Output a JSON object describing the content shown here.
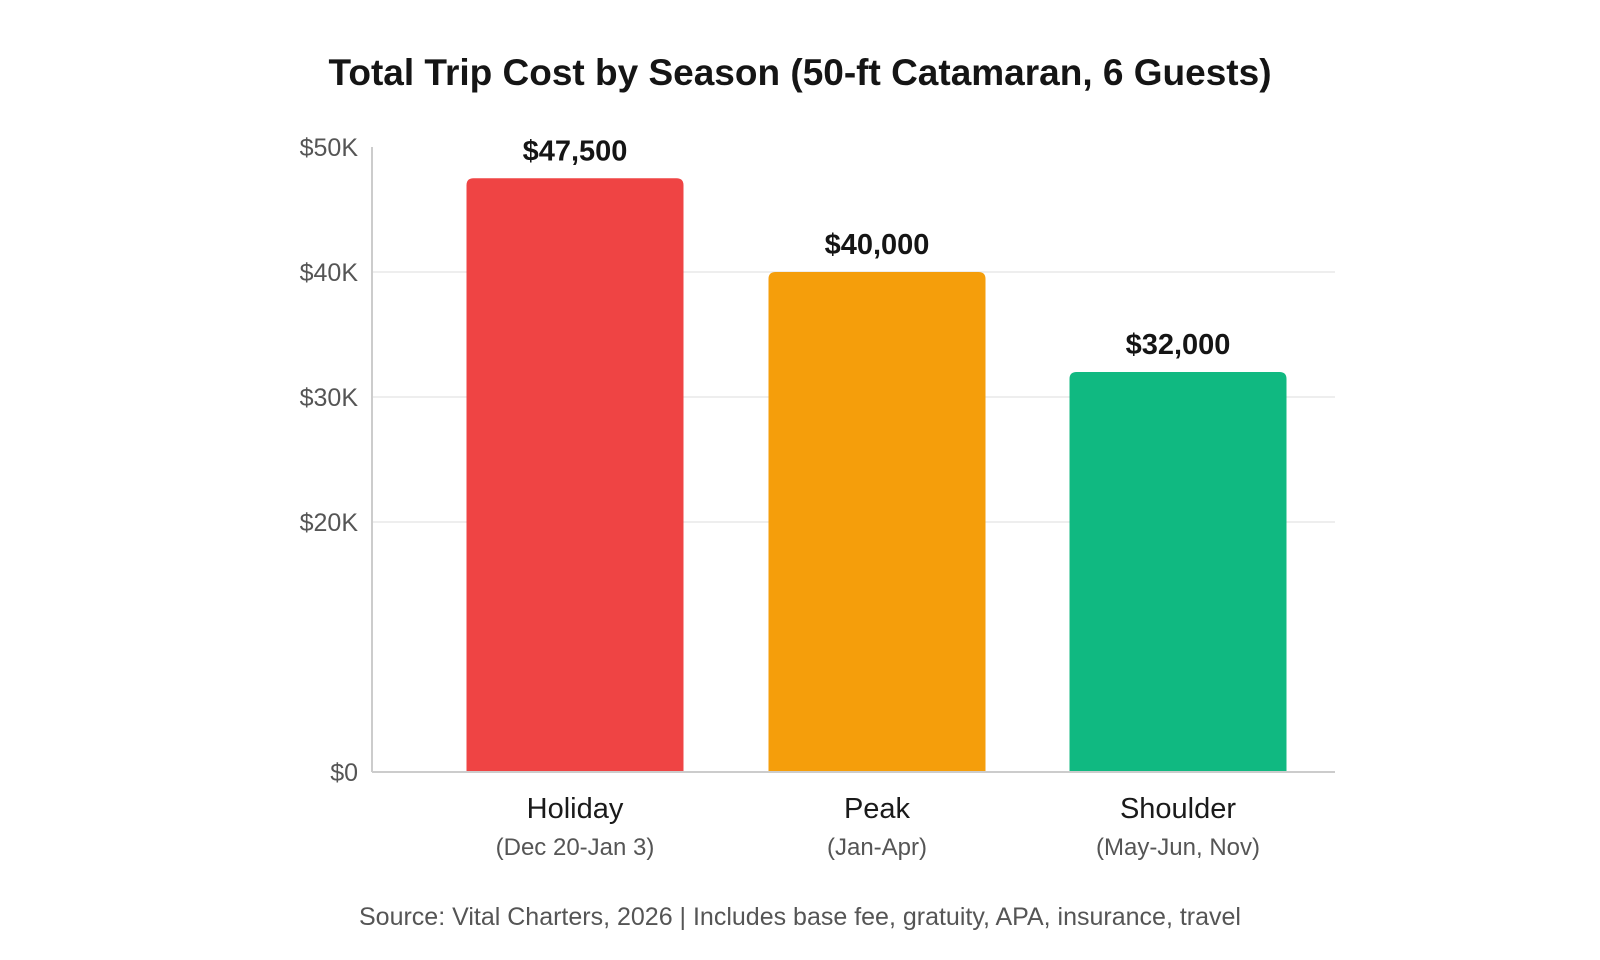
{
  "chart_data": {
    "type": "bar",
    "title": "Total Trip Cost by Season (50-ft Catamaran, 6 Guests)",
    "xlabel": "",
    "ylabel": "",
    "categories": [
      "Holiday",
      "Peak",
      "Shoulder"
    ],
    "category_sublabels": [
      "(Dec 20-Jan 3)",
      "(Jan-Apr)",
      "(May-Jun, Nov)"
    ],
    "values": [
      47500,
      40000,
      32000
    ],
    "value_labels": [
      "$47,500",
      "$40,000",
      "$32,000"
    ],
    "bar_colors": [
      "#EF4444",
      "#F59E0B",
      "#10B981"
    ],
    "ylim": [
      0,
      50000
    ],
    "y_ticks": [
      0,
      20000,
      30000,
      40000,
      50000
    ],
    "y_tick_labels": [
      "$0",
      "$20K",
      "$30K",
      "$40K",
      "$50K"
    ],
    "grid": true,
    "legend": "none"
  },
  "footer": {
    "source": "Source: Vital Charters, 2026 | Includes base fee, gratuity, APA, insurance, travel"
  }
}
